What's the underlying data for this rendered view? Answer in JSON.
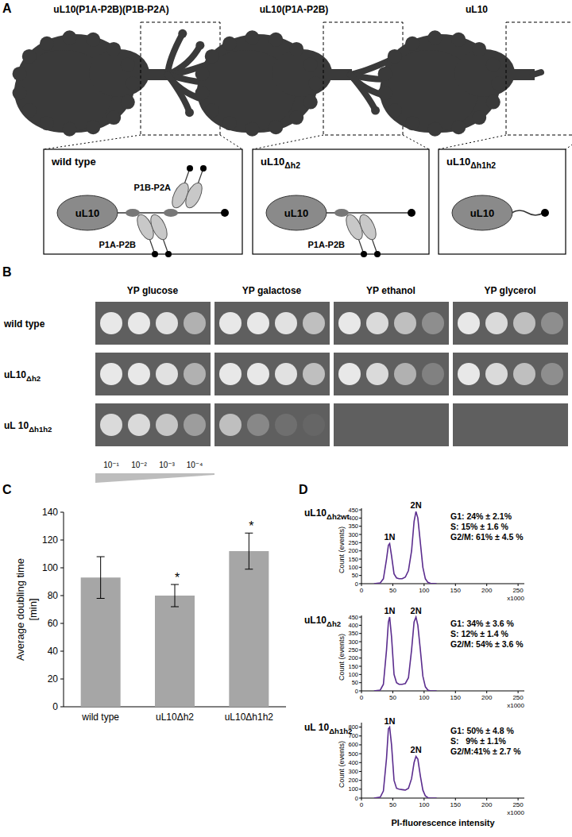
{
  "panel_labels": [
    "A",
    "B",
    "C",
    "D"
  ],
  "diagram": {
    "top_labels": [
      "uL10(P1A-P2B)(P1B-P2A)",
      "uL10(P1A-P2B)",
      "uL10"
    ],
    "boxes": [
      {
        "title": "wild type",
        "nodes": [
          "uL10",
          "P1B-P2A",
          "P1A-P2B"
        ]
      },
      {
        "title": "uL10Δh2",
        "nodes": [
          "uL10",
          "P1A-P2B"
        ]
      },
      {
        "title": "uL10Δh1h2",
        "nodes": [
          "uL10"
        ]
      }
    ]
  },
  "spot_assay": {
    "media": [
      "YP glucose",
      "YP galactose",
      "YP ethanol",
      "YP glycerol"
    ],
    "strains": [
      "wild type",
      "uL10Δh2",
      "uL 10Δh1h2"
    ],
    "dilutions": [
      "10⁻¹",
      "10⁻²",
      "10⁻³",
      "10⁻⁴"
    ],
    "growth": [
      [
        [
          1,
          1,
          0.95,
          0.6
        ],
        [
          1,
          1,
          0.95,
          0.7
        ],
        [
          1,
          0.9,
          0.7,
          0.35
        ],
        [
          1,
          0.9,
          0.7,
          0.35
        ]
      ],
      [
        [
          1,
          1,
          0.95,
          0.6
        ],
        [
          1,
          1,
          0.95,
          0.7
        ],
        [
          1,
          0.9,
          0.6,
          0.25
        ],
        [
          1,
          0.9,
          0.7,
          0.35
        ]
      ],
      [
        [
          0.9,
          0.9,
          0.75,
          0.45
        ],
        [
          0.7,
          0.3,
          0.12,
          0.05
        ],
        [
          0,
          0,
          0,
          0
        ],
        [
          0,
          0,
          0,
          0
        ]
      ]
    ]
  },
  "chart_data": [
    {
      "type": "bar",
      "categories": [
        "wild type",
        "uL10Δh2",
        "uL10Δh1h2"
      ],
      "values": [
        93,
        80,
        112
      ],
      "errors": [
        15,
        8,
        13
      ],
      "value_annotations": [
        null,
        "*",
        "*"
      ],
      "color": "#a6a6a6",
      "ylim": [
        0,
        140
      ],
      "yticks": [
        0,
        20,
        40,
        60,
        80,
        100,
        120,
        140
      ],
      "y_label": [
        "Average doubling time",
        "[min]"
      ]
    },
    {
      "type": "line",
      "title": "uL10Δh2wt",
      "x": [
        20,
        30,
        35,
        40,
        43,
        45,
        48,
        52,
        56,
        60,
        65,
        70,
        75,
        80,
        84,
        87,
        90,
        94,
        98,
        102,
        106,
        110,
        120
      ],
      "series": [
        {
          "color": "#5b2d8e",
          "values": [
            0,
            5,
            30,
            150,
            235,
            245,
            170,
            60,
            35,
            30,
            30,
            40,
            80,
            200,
            380,
            440,
            400,
            250,
            100,
            30,
            8,
            2,
            0
          ]
        }
      ],
      "xlim": [
        0,
        260
      ],
      "xticks": [
        0,
        50,
        100,
        150,
        200,
        250
      ],
      "ylim": [
        0,
        460
      ],
      "yticks": [
        0,
        50,
        100,
        150,
        200,
        250,
        300,
        350,
        400,
        450
      ],
      "y_label": "Count (events)",
      "x_unit_label": "x1000",
      "annotations": [
        {
          "text": "1N",
          "x": 45
        },
        {
          "text": "2N",
          "x": 87
        }
      ],
      "stats": [
        "G1: 24% ± 2.1%",
        "S: 15% ± 1.6 %",
        "G2/M: 61% ± 4.5 %"
      ]
    },
    {
      "type": "line",
      "title": "uL10Δh2",
      "x": [
        20,
        30,
        35,
        40,
        43,
        45,
        48,
        52,
        56,
        60,
        65,
        70,
        75,
        80,
        84,
        87,
        90,
        94,
        98,
        102,
        106,
        110,
        120
      ],
      "series": [
        {
          "color": "#5b2d8e",
          "values": [
            0,
            5,
            40,
            250,
            420,
            450,
            330,
            100,
            50,
            40,
            40,
            45,
            80,
            250,
            420,
            450,
            400,
            250,
            90,
            25,
            5,
            0,
            0
          ]
        }
      ],
      "xlim": [
        0,
        260
      ],
      "xticks": [
        0,
        50,
        100,
        150,
        200,
        250
      ],
      "ylim": [
        0,
        460
      ],
      "yticks": [
        0,
        50,
        100,
        150,
        200,
        250,
        300,
        350,
        400,
        450
      ],
      "y_label": "Count (events)",
      "x_unit_label": "x1000",
      "annotations": [
        {
          "text": "1N",
          "x": 45
        },
        {
          "text": "2N",
          "x": 87
        }
      ],
      "stats": [
        "G1: 34% ± 3.6 %",
        "S: 12% ± 1.4 %",
        "G2/M: 54% ± 3.6 %"
      ]
    },
    {
      "type": "line",
      "title": "uL 10Δh1h2",
      "x": [
        20,
        30,
        35,
        40,
        43,
        45,
        48,
        52,
        56,
        60,
        65,
        70,
        75,
        80,
        84,
        87,
        90,
        94,
        98,
        102,
        106,
        110,
        120
      ],
      "series": [
        {
          "color": "#5b2d8e",
          "values": [
            0,
            10,
            80,
            450,
            780,
            800,
            600,
            200,
            110,
            100,
            95,
            90,
            110,
            220,
            400,
            470,
            440,
            250,
            90,
            25,
            5,
            0,
            0
          ]
        }
      ],
      "xlim": [
        0,
        260
      ],
      "xticks": [
        0,
        50,
        100,
        150,
        200,
        250
      ],
      "ylim": [
        0,
        850
      ],
      "yticks": [
        0,
        100,
        200,
        300,
        400,
        500,
        600,
        700,
        800
      ],
      "y_label": "Count (events)",
      "x_unit_label": "x1000",
      "x_label": "PI-fluorescence intensity",
      "annotations": [
        {
          "text": "1N",
          "x": 45
        },
        {
          "text": "2N",
          "x": 87
        }
      ],
      "stats": [
        "G1: 50% ± 4.8 %",
        "S:   9% ± 1.1%",
        "G2/M:41% ± 2.7 %"
      ]
    }
  ]
}
